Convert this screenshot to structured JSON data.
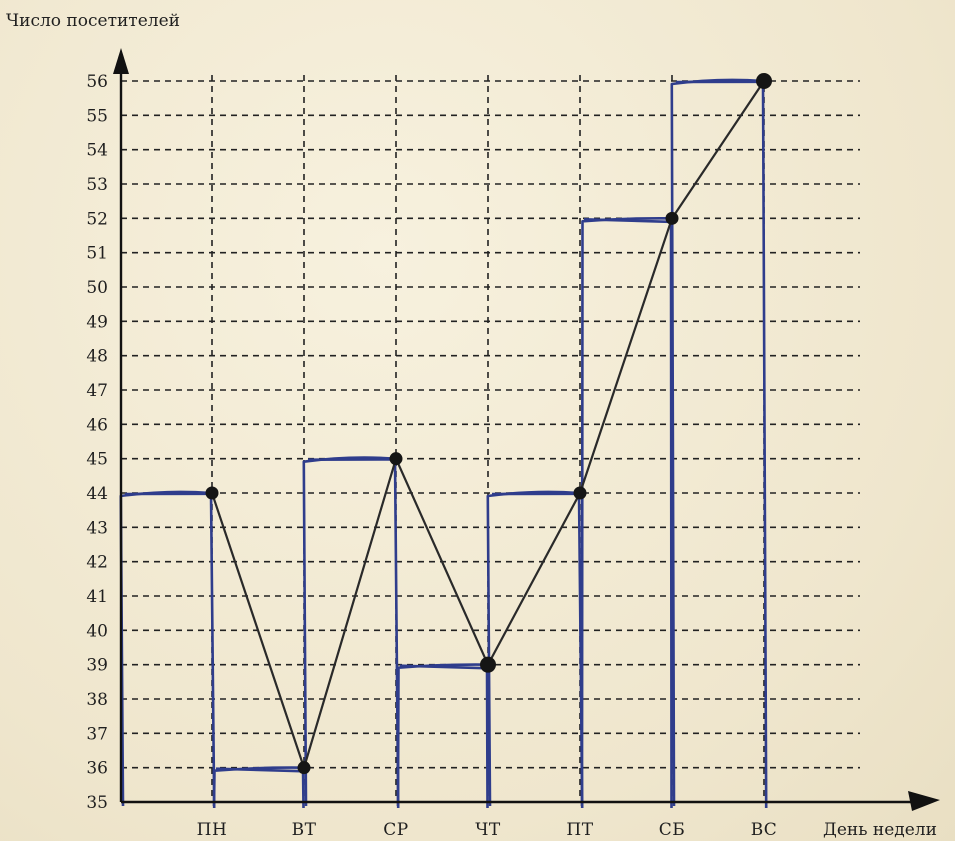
{
  "chart_data": {
    "type": "line",
    "ylabel": "Число посетителей",
    "xlabel": "День недели",
    "categories": [
      "ПН",
      "ВТ",
      "СР",
      "ЧТ",
      "ПТ",
      "СБ",
      "ВС"
    ],
    "values": [
      44,
      36,
      45,
      39,
      44,
      52,
      56
    ],
    "ylim": [
      35,
      56
    ],
    "yticks": [
      35,
      36,
      37,
      38,
      39,
      40,
      41,
      42,
      43,
      44,
      45,
      46,
      47,
      48,
      49,
      50,
      51,
      52,
      53,
      54,
      55,
      56
    ],
    "grid": true,
    "overlay": "hand-drawn step bars",
    "colors": {
      "bars": "#2f3d8c",
      "line": "#2a2a2a",
      "grid": "#222222"
    }
  }
}
